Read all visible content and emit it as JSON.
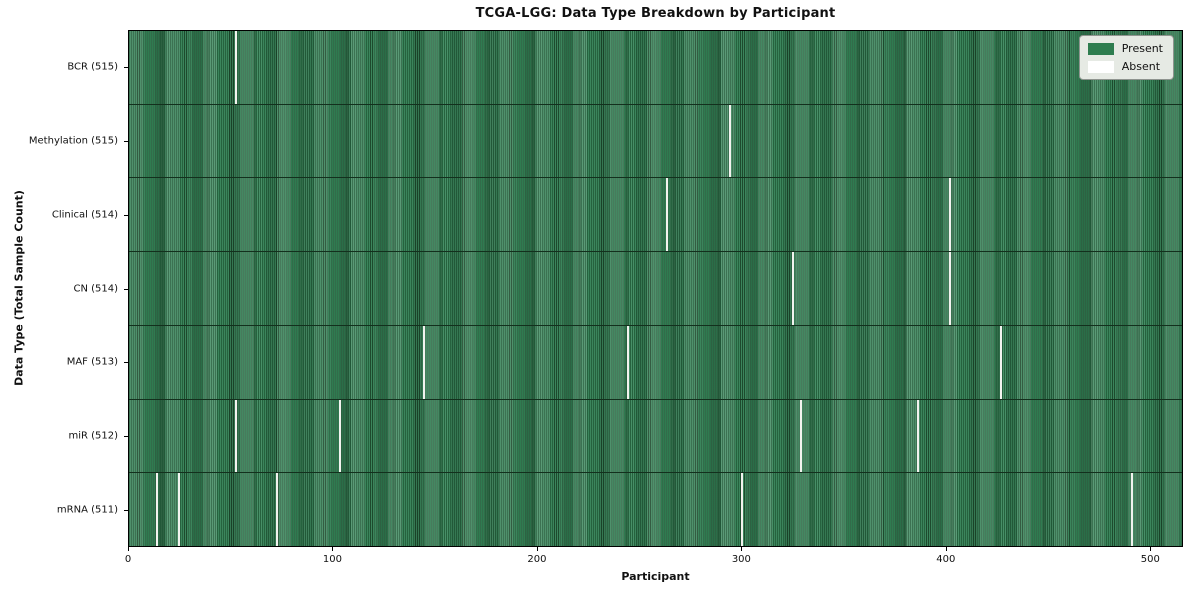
{
  "chart_data": {
    "type": "heatmap",
    "title": "TCGA-LGG: Data Type Breakdown by Participant",
    "xlabel": "Participant",
    "ylabel": "Data Type (Total Sample Count)",
    "x_range": [
      0,
      516
    ],
    "x_ticks": [
      0,
      100,
      200,
      300,
      400,
      500
    ],
    "total_participants": 516,
    "legend": {
      "position": "upper right",
      "entries": [
        {
          "label": "Present",
          "color": "#2e7d4f"
        },
        {
          "label": "Absent",
          "color": "#ffffff"
        }
      ]
    },
    "rows": [
      {
        "label": "BCR (515)",
        "data_type": "BCR",
        "present_count": 515,
        "absent_participants": [
          52
        ]
      },
      {
        "label": "Methylation (515)",
        "data_type": "Methylation",
        "present_count": 515,
        "absent_participants": [
          294
        ]
      },
      {
        "label": "Clinical (514)",
        "data_type": "Clinical",
        "present_count": 514,
        "absent_participants": [
          263,
          402
        ]
      },
      {
        "label": "CN (514)",
        "data_type": "CN",
        "present_count": 514,
        "absent_participants": [
          325,
          402
        ]
      },
      {
        "label": "MAF (513)",
        "data_type": "MAF",
        "present_count": 513,
        "absent_participants": [
          144,
          244,
          427
        ]
      },
      {
        "label": "miR (512)",
        "data_type": "miR",
        "present_count": 512,
        "absent_participants": [
          52,
          103,
          329,
          386
        ]
      },
      {
        "label": "mRNA (511)",
        "data_type": "mRNA",
        "present_count": 511,
        "absent_participants": [
          13,
          24,
          72,
          300,
          491
        ]
      }
    ],
    "colors": {
      "present": "#2e7d4f",
      "present_light": "#478f67",
      "bar_edge": "#1d4a2d",
      "absent": "#f2f3ef",
      "legend_bg": "#e6eae4"
    }
  }
}
